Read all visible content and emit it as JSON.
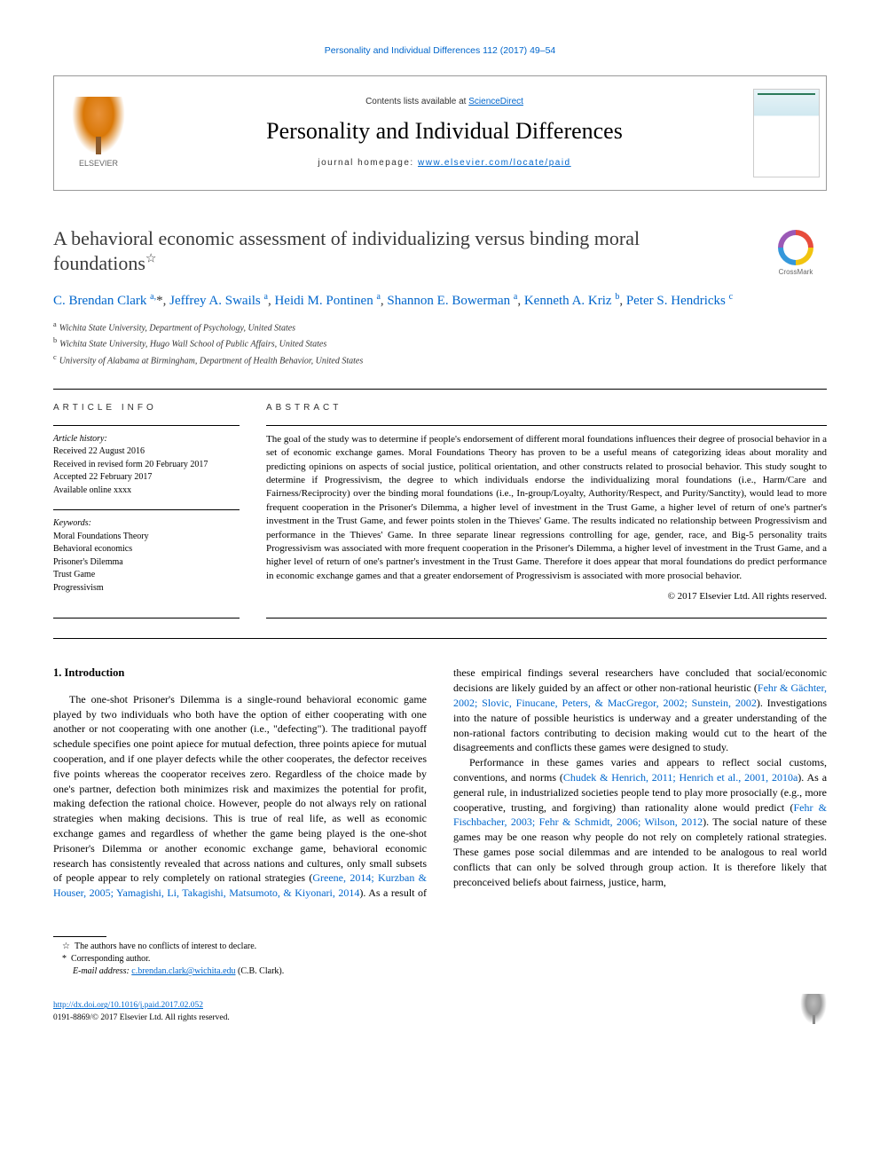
{
  "top_link": "Personality and Individual Differences 112 (2017) 49–54",
  "header": {
    "contents_pre": "Contents lists available at ",
    "contents_link": "ScienceDirect",
    "journal": "Personality and Individual Differences",
    "homepage_pre": "journal homepage: ",
    "homepage_link": "www.elsevier.com/locate/paid",
    "publisher": "ELSEVIER"
  },
  "crossmark": "CrossMark",
  "title": "A behavioral economic assessment of individualizing versus binding moral foundations",
  "title_star": "☆",
  "authors_html": "C. Brendan Clark <sup>a,</sup>*, Jeffrey A. Swails <sup>a</sup>, Heidi M. Pontinen <sup>a</sup>, Shannon E. Bowerman <sup>a</sup>, Kenneth A. Kriz <sup>b</sup>, Peter S. Hendricks <sup>c</sup>",
  "authors": [
    {
      "name": "C. Brendan Clark",
      "aff": "a",
      "corr": true
    },
    {
      "name": "Jeffrey A. Swails",
      "aff": "a"
    },
    {
      "name": "Heidi M. Pontinen",
      "aff": "a"
    },
    {
      "name": "Shannon E. Bowerman",
      "aff": "a"
    },
    {
      "name": "Kenneth A. Kriz",
      "aff": "b"
    },
    {
      "name": "Peter S. Hendricks",
      "aff": "c"
    }
  ],
  "affiliations": {
    "a": "Wichita State University, Department of Psychology, United States",
    "b": "Wichita State University, Hugo Wall School of Public Affairs, United States",
    "c": "University of Alabama at Birmingham, Department of Health Behavior, United States"
  },
  "article_info": {
    "label": "article info",
    "history_head": "Article history:",
    "received": "Received 22 August 2016",
    "revised": "Received in revised form 20 February 2017",
    "accepted": "Accepted 22 February 2017",
    "online": "Available online xxxx",
    "keywords_head": "Keywords:",
    "keywords": [
      "Moral Foundations Theory",
      "Behavioral economics",
      "Prisoner's Dilemma",
      "Trust Game",
      "Progressivism"
    ]
  },
  "abstract": {
    "label": "abstract",
    "text": "The goal of the study was to determine if people's endorsement of different moral foundations influences their degree of prosocial behavior in a set of economic exchange games. Moral Foundations Theory has proven to be a useful means of categorizing ideas about morality and predicting opinions on aspects of social justice, political orientation, and other constructs related to prosocial behavior. This study sought to determine if Progressivism, the degree to which individuals endorse the individualizing moral foundations (i.e., Harm/Care and Fairness/Reciprocity) over the binding moral foundations (i.e., In-group/Loyalty, Authority/Respect, and Purity/Sanctity), would lead to more frequent cooperation in the Prisoner's Dilemma, a higher level of investment in the Trust Game, a higher level of return of one's partner's investment in the Trust Game, and fewer points stolen in the Thieves' Game. The results indicated no relationship between Progressivism and performance in the Thieves' Game. In three separate linear regressions controlling for age, gender, race, and Big-5 personality traits Progressivism was associated with more frequent cooperation in the Prisoner's Dilemma, a higher level of investment in the Trust Game, and a higher level of return of one's partner's investment in the Trust Game. Therefore it does appear that moral foundations do predict performance in economic exchange games and that a greater endorsement of Progressivism is associated with more prosocial behavior.",
    "copyright": "© 2017 Elsevier Ltd. All rights reserved."
  },
  "intro": {
    "heading": "1. Introduction",
    "p1": "The one-shot Prisoner's Dilemma is a single-round behavioral economic game played by two individuals who both have the option of either cooperating with one another or not cooperating with one another (i.e., \"defecting\"). The traditional payoff schedule specifies one point apiece for mutual defection, three points apiece for mutual cooperation, and if one player defects while the other cooperates, the defector receives five points whereas the cooperator receives zero. Regardless of the choice made by one's partner, defection both minimizes risk and maximizes the potential for profit, making defection the rational choice. However, people do not always rely on rational strategies when making decisions. This is true of real life, as well as economic exchange games and regardless of whether the game being played is the one-shot Prisoner's Dilemma or another economic exchange game, behavioral economic research has consistently revealed that across nations and",
    "p1b": "cultures, only small subsets of people appear to rely completely on rational strategies (",
    "cite1": "Greene, 2014; Kurzban & Houser, 2005; Yamagishi, Li, Takagishi, Matsumoto, & Kiyonari, 2014",
    "p1c": "). As a result of these empirical findings several researchers have concluded that social/economic decisions are likely guided by an affect or other non-rational heuristic (",
    "cite2": "Fehr & Gächter, 2002; Slovic, Finucane, Peters, & MacGregor, 2002; Sunstein, 2002",
    "p1d": "). Investigations into the nature of possible heuristics is underway and a greater understanding of the non-rational factors contributing to decision making would cut to the heart of the disagreements and conflicts these games were designed to study.",
    "p2a": "Performance in these games varies and appears to reflect social customs, conventions, and norms (",
    "cite3": "Chudek & Henrich, 2011; Henrich et al., 2001, 2010a",
    "p2b": "). As a general rule, in industrialized societies people tend to play more prosocially (e.g., more cooperative, trusting, and forgiving) than rationality alone would predict (",
    "cite4": "Fehr & Fischbacher, 2003; Fehr & Schmidt, 2006; Wilson, 2012",
    "p2c": "). The social nature of these games may be one reason why people do not rely on completely rational strategies. These games pose social dilemmas and are intended to be analogous to real world conflicts that can only be solved through group action. It is therefore likely that preconceived beliefs about fairness, justice, harm,"
  },
  "footnotes": {
    "conflict": "The authors have no conflicts of interest to declare.",
    "corr": "Corresponding author.",
    "email_label": "E-mail address:",
    "email": "c.brendan.clark@wichita.edu",
    "email_who": "(C.B. Clark)."
  },
  "bottom": {
    "doi": "http://dx.doi.org/10.1016/j.paid.2017.02.052",
    "issn": "0191-8869/© 2017 Elsevier Ltd. All rights reserved."
  },
  "colors": {
    "link": "#0066cc",
    "text": "#000000",
    "heading": "#3a3a3a",
    "rule": "#000000"
  }
}
